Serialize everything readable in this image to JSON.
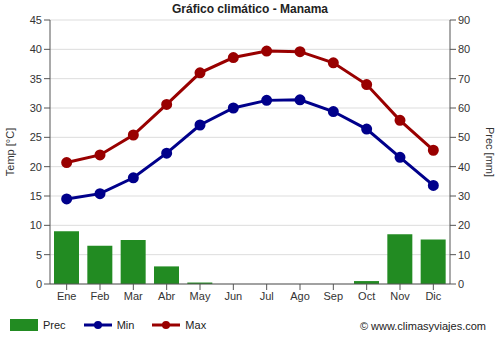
{
  "chart_data": {
    "type": "line",
    "title": "Gráfico climático - Manama",
    "y_label": "Temp [°C]",
    "y2_label": "Prec [mm]",
    "annotations": [
      "© www.climasyviajes.com"
    ],
    "categories": [
      "Ene",
      "Feb",
      "Mar",
      "Abr",
      "May",
      "Jun",
      "Jul",
      "Ago",
      "Sep",
      "Oct",
      "Nov",
      "Dic"
    ],
    "series": [
      {
        "name": "Prec",
        "type": "bar",
        "axis": "y2",
        "color": "#228b22",
        "values": [
          18,
          13,
          15,
          6,
          0.5,
          0,
          0,
          0,
          0,
          1,
          17,
          15.2
        ]
      },
      {
        "name": "Min",
        "type": "line",
        "color": "#00008b",
        "marker": "circle",
        "values": [
          14.5,
          15.4,
          18.1,
          22.3,
          27.1,
          30,
          31.3,
          31.4,
          29.4,
          26.4,
          21.6,
          16.8
        ]
      },
      {
        "name": "Max",
        "type": "line",
        "color": "#990000",
        "marker": "circle",
        "values": [
          20.7,
          22,
          25.4,
          30.6,
          36,
          38.6,
          39.7,
          39.6,
          37.7,
          34,
          27.9,
          22.8
        ]
      }
    ],
    "ylim": [
      0,
      45
    ],
    "yticks": [
      0,
      5,
      10,
      15,
      20,
      25,
      30,
      35,
      40,
      45
    ],
    "y2lim": [
      0,
      90
    ],
    "y2ticks": [
      0,
      10,
      20,
      30,
      40,
      50,
      60,
      70,
      80,
      90
    ],
    "grid": true,
    "legend": "bottom"
  }
}
